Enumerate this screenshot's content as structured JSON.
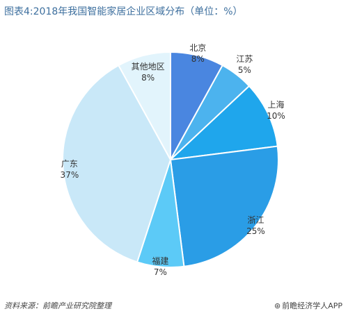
{
  "title": "图表4:2018年我国智能家居企业区域分布（单位：%）",
  "footer": {
    "source": "资料来源：前瞻产业研究院整理",
    "brand": "前瞻经济学人APP"
  },
  "chart_data": {
    "type": "pie",
    "title": "图表4:2018年我国智能家居企业区域分布（单位：%）",
    "unit": "%",
    "slices": [
      {
        "name": "北京",
        "value": 8,
        "label": "8%",
        "color": "#4a86e0"
      },
      {
        "name": "江苏",
        "value": 5,
        "label": "5%",
        "color": "#4cb3ee"
      },
      {
        "name": "上海",
        "value": 10,
        "label": "10%",
        "color": "#1fa6ec"
      },
      {
        "name": "浙江",
        "value": 25,
        "label": "25%",
        "color": "#2a9de6"
      },
      {
        "name": "福建",
        "value": 7,
        "label": "7%",
        "color": "#5ccaf7"
      },
      {
        "name": "广东",
        "value": 37,
        "label": "37%",
        "color": "#c9e8f8"
      },
      {
        "name": "其他地区",
        "value": 8,
        "label": "8%",
        "color": "#e2f4fc"
      }
    ]
  }
}
